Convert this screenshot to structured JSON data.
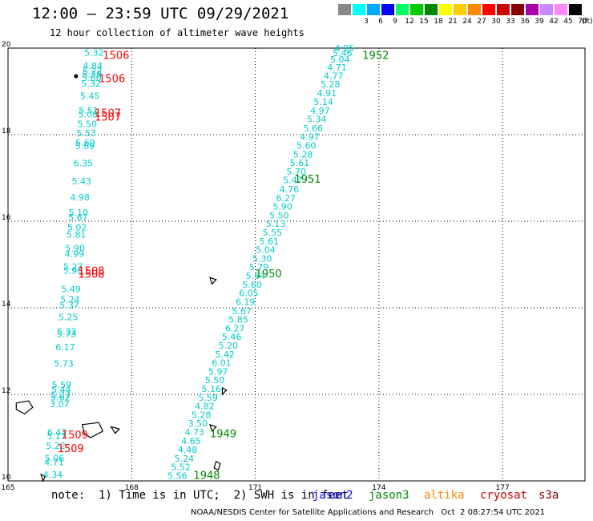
{
  "header": {
    "title": "12:00 – 23:59 UTC 09/29/2021",
    "subtitle": "12 hour collection of altimeter wave heights"
  },
  "colorbar": {
    "unit": "(ft)",
    "colors": [
      "#888888",
      "#00ffff",
      "#00aaff",
      "#0000ff",
      "#00ff66",
      "#00cc00",
      "#008800",
      "#ffff00",
      "#ffcc00",
      "#ff8800",
      "#ff0000",
      "#cc0000",
      "#880000",
      "#aa00aa",
      "#cc88ff",
      "#ff88ff",
      "#000000"
    ],
    "labels": [
      "",
      "3",
      "6",
      "9",
      "12",
      "15",
      "18",
      "21",
      "24",
      "27",
      "30",
      "33",
      "36",
      "39",
      "42",
      "45",
      "70"
    ]
  },
  "axes": {
    "lon_labels": [
      "165",
      "168",
      "171",
      "174",
      "177"
    ],
    "lat_labels": [
      "10",
      "12",
      "14",
      "16",
      "18",
      "20"
    ],
    "lon_range": [
      165,
      179
    ],
    "lat_range": [
      10,
      20
    ],
    "grid": "dotted"
  },
  "track_west": [
    {
      "lat": 19.82,
      "v": "5.32"
    },
    {
      "lat": 19.52,
      "v": "4.84"
    },
    {
      "lat": 19.4,
      "v": "5.22"
    },
    {
      "lat": 19.32,
      "v": "5.38"
    },
    {
      "lat": 19.24,
      "v": "5.60"
    },
    {
      "lat": 19.11,
      "v": "5.32"
    },
    {
      "lat": 18.82,
      "v": "5.45"
    },
    {
      "lat": 18.49,
      "v": "5.51"
    },
    {
      "lat": 18.4,
      "v": "5.08"
    },
    {
      "lat": 18.18,
      "v": "5.50"
    },
    {
      "lat": 17.96,
      "v": "5.53"
    },
    {
      "lat": 17.74,
      "v": "5.60"
    },
    {
      "lat": 17.67,
      "v": "5.69"
    },
    {
      "lat": 17.27,
      "v": "6.35"
    },
    {
      "lat": 16.85,
      "v": "5.43"
    },
    {
      "lat": 16.48,
      "v": "4.98"
    },
    {
      "lat": 16.13,
      "v": "5.10"
    },
    {
      "lat": 16.02,
      "v": "5.67"
    },
    {
      "lat": 15.79,
      "v": "5.02"
    },
    {
      "lat": 15.62,
      "v": "5.81"
    },
    {
      "lat": 15.31,
      "v": "5.90"
    },
    {
      "lat": 15.18,
      "v": "4.99"
    },
    {
      "lat": 14.88,
      "v": "5.27"
    },
    {
      "lat": 14.79,
      "v": "5.90"
    },
    {
      "lat": 14.36,
      "v": "5.49"
    },
    {
      "lat": 14.12,
      "v": "5.24"
    },
    {
      "lat": 13.99,
      "v": "5.37"
    },
    {
      "lat": 13.71,
      "v": "5.25"
    },
    {
      "lat": 13.38,
      "v": "5.32"
    },
    {
      "lat": 13.32,
      "v": "5.73"
    },
    {
      "lat": 13.02,
      "v": "6.17"
    },
    {
      "lat": 12.64,
      "v": "5.73"
    },
    {
      "lat": 12.15,
      "v": "5.59"
    },
    {
      "lat": 12.04,
      "v": "5.44"
    },
    {
      "lat": 11.92,
      "v": "5.37"
    },
    {
      "lat": 11.86,
      "v": "5.62"
    },
    {
      "lat": 11.7,
      "v": "3.07"
    },
    {
      "lat": 11.06,
      "v": "6.42"
    },
    {
      "lat": 10.96,
      "v": "5.17"
    },
    {
      "lat": 10.74,
      "v": "5.22"
    },
    {
      "lat": 10.45,
      "v": "5.06"
    },
    {
      "lat": 10.36,
      "v": "4.71"
    },
    {
      "lat": 10.07,
      "v": "4.34"
    }
  ],
  "track_east": [
    {
      "lat": 20.0,
      "v": "4.95"
    },
    {
      "lat": 19.89,
      "v": "5.46"
    },
    {
      "lat": 19.74,
      "v": "5.04"
    },
    {
      "lat": 19.56,
      "v": "4.71"
    },
    {
      "lat": 19.36,
      "v": "4.77"
    },
    {
      "lat": 19.17,
      "v": "5.28"
    },
    {
      "lat": 18.96,
      "v": "4.91"
    },
    {
      "lat": 18.76,
      "v": "5.14"
    },
    {
      "lat": 18.56,
      "v": "4.97"
    },
    {
      "lat": 18.36,
      "v": "5.34"
    },
    {
      "lat": 18.15,
      "v": "5.66"
    },
    {
      "lat": 17.95,
      "v": "4.97"
    },
    {
      "lat": 17.75,
      "v": "5.60"
    },
    {
      "lat": 17.55,
      "v": "5.28"
    },
    {
      "lat": 17.35,
      "v": "5.61"
    },
    {
      "lat": 17.15,
      "v": "5.70"
    },
    {
      "lat": 16.95,
      "v": "5.47"
    },
    {
      "lat": 16.74,
      "v": "4.76"
    },
    {
      "lat": 16.54,
      "v": "6.27"
    },
    {
      "lat": 16.34,
      "v": "5.90"
    },
    {
      "lat": 16.14,
      "v": "5.50"
    },
    {
      "lat": 15.94,
      "v": "5.13"
    },
    {
      "lat": 15.74,
      "v": "5.55"
    },
    {
      "lat": 15.54,
      "v": "5.61"
    },
    {
      "lat": 15.34,
      "v": "5.04"
    },
    {
      "lat": 15.14,
      "v": "5.30"
    },
    {
      "lat": 14.94,
      "v": "5.79"
    },
    {
      "lat": 14.74,
      "v": "5.64"
    },
    {
      "lat": 14.54,
      "v": "5.60"
    },
    {
      "lat": 14.34,
      "v": "6.05"
    },
    {
      "lat": 14.14,
      "v": "6.19"
    },
    {
      "lat": 13.93,
      "v": "5.67"
    },
    {
      "lat": 13.73,
      "v": "5.85"
    },
    {
      "lat": 13.53,
      "v": "6.27"
    },
    {
      "lat": 13.33,
      "v": "5.46"
    },
    {
      "lat": 13.13,
      "v": "5.20"
    },
    {
      "lat": 12.93,
      "v": "5.42"
    },
    {
      "lat": 12.73,
      "v": "6.01"
    },
    {
      "lat": 12.53,
      "v": "5.97"
    },
    {
      "lat": 12.33,
      "v": "5.50"
    },
    {
      "lat": 12.13,
      "v": "5.16"
    },
    {
      "lat": 11.93,
      "v": "5.59"
    },
    {
      "lat": 11.73,
      "v": "4.82"
    },
    {
      "lat": 11.53,
      "v": "5.28"
    },
    {
      "lat": 11.33,
      "v": "3.50"
    },
    {
      "lat": 11.13,
      "v": "4.73"
    },
    {
      "lat": 10.93,
      "v": "4.65"
    },
    {
      "lat": 10.72,
      "v": "4.48"
    },
    {
      "lat": 10.52,
      "v": "5.24"
    },
    {
      "lat": 10.32,
      "v": "5.52"
    },
    {
      "lat": 10.12,
      "v": "5.56"
    }
  ],
  "time_labels": [
    {
      "text": "1506",
      "color": "#ff0000",
      "lon": 167.3,
      "lat": 19.82
    },
    {
      "text": "1506",
      "color": "#ff0000",
      "lon": 167.2,
      "lat": 19.29
    },
    {
      "text": "1507",
      "color": "#ff0000",
      "lon": 167.1,
      "lat": 18.49
    },
    {
      "text": "1507",
      "color": "#ff0000",
      "lon": 167.1,
      "lat": 18.4
    },
    {
      "text": "1508",
      "color": "#ff0000",
      "lon": 166.7,
      "lat": 14.84
    },
    {
      "text": "1508",
      "color": "#ff0000",
      "lon": 166.7,
      "lat": 14.77
    },
    {
      "text": "1509",
      "color": "#ff0000",
      "lon": 166.3,
      "lat": 11.06
    },
    {
      "text": "1509",
      "color": "#ff0000",
      "lon": 166.2,
      "lat": 10.74
    },
    {
      "text": "1952",
      "color": "#008800",
      "lon": 173.6,
      "lat": 19.82
    },
    {
      "text": "1951",
      "color": "#008800",
      "lon": 171.95,
      "lat": 16.96
    },
    {
      "text": "1950",
      "color": "#008800",
      "lon": 171.0,
      "lat": 14.78
    },
    {
      "text": "1949",
      "color": "#008800",
      "lon": 169.9,
      "lat": 11.08
    },
    {
      "text": "1948",
      "color": "#008800",
      "lon": 169.5,
      "lat": 10.12
    }
  ],
  "legend": {
    "note": "note:  1) Time is in UTC;  2) SWH is in feet",
    "sats": [
      {
        "name": "jason2",
        "color": "#0000ff"
      },
      {
        "name": "jason3",
        "color": "#008800"
      },
      {
        "name": "altika",
        "color": "#ff8800"
      },
      {
        "name": "cryosat",
        "color": "#cc0000"
      },
      {
        "name": "s3a",
        "color": "#880000"
      }
    ]
  },
  "footer": "NOAA/NESDIS Center for Satellite Applications and Research   Oct  2 08:27:54 UTC 2021"
}
